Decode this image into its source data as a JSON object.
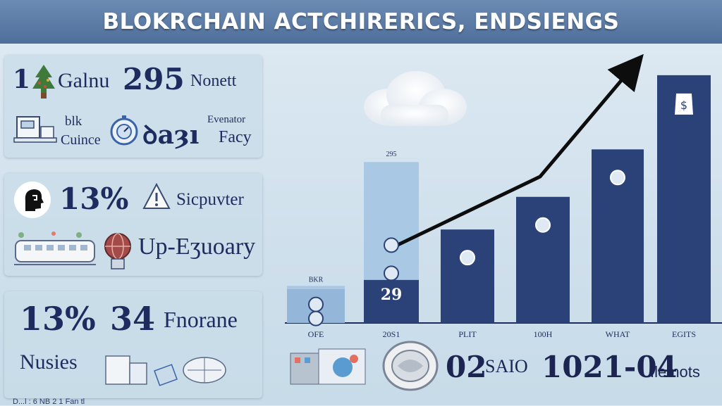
{
  "title": "BLOKRCHAIN ACTCHIRERICS, ENDSIENGS",
  "panel1": {
    "num1": "1",
    "word1": "Galnu",
    "num2": "295",
    "word2": "Nonett",
    "label_a": "blk",
    "label_b": "Cuince",
    "mid": "ꝺaȝı",
    "right_a": "Evenator",
    "right_b": "Facy"
  },
  "panel2": {
    "pct": "13%",
    "word": "Sicpuvter",
    "word2": "Up-Eʒuoary"
  },
  "panel3": {
    "pct": "13%",
    "num": "34",
    "word": "Fnorane",
    "word2": "Nusies"
  },
  "bottom": {
    "big1": "02",
    "small1": "SAIO",
    "big2": "1021-04",
    "small2": "Ilemots"
  },
  "footer": "D...l : 6  NB 2 1 Fan tl",
  "icons": [
    "tree-icon",
    "truck-icon",
    "stopwatch-icon",
    "head-icon",
    "warning-icon",
    "train-icon",
    "globe-icon",
    "building-icon",
    "coin-icon",
    "dollar-tag-icon",
    "cloud-icon"
  ],
  "colors": {
    "bar_dark": "#2a4277",
    "bar_light": "#a9c8e4",
    "title_bg": "#5a7aa6",
    "text": "#1e2b5e"
  },
  "chart_data": {
    "type": "bar",
    "title": "",
    "categories": [
      "OFE",
      "20S1",
      "PLIT",
      "100H",
      "WHAT",
      "EGITS"
    ],
    "values": [
      25,
      29,
      63,
      85,
      117,
      167
    ],
    "top_labels": [
      "BKR",
      "295",
      "",
      "",
      "",
      ""
    ],
    "data_labels": [
      "",
      "29",
      "",
      "",
      "",
      ""
    ],
    "ylim": [
      0,
      175
    ],
    "grid": false,
    "trend_arrow": true
  }
}
